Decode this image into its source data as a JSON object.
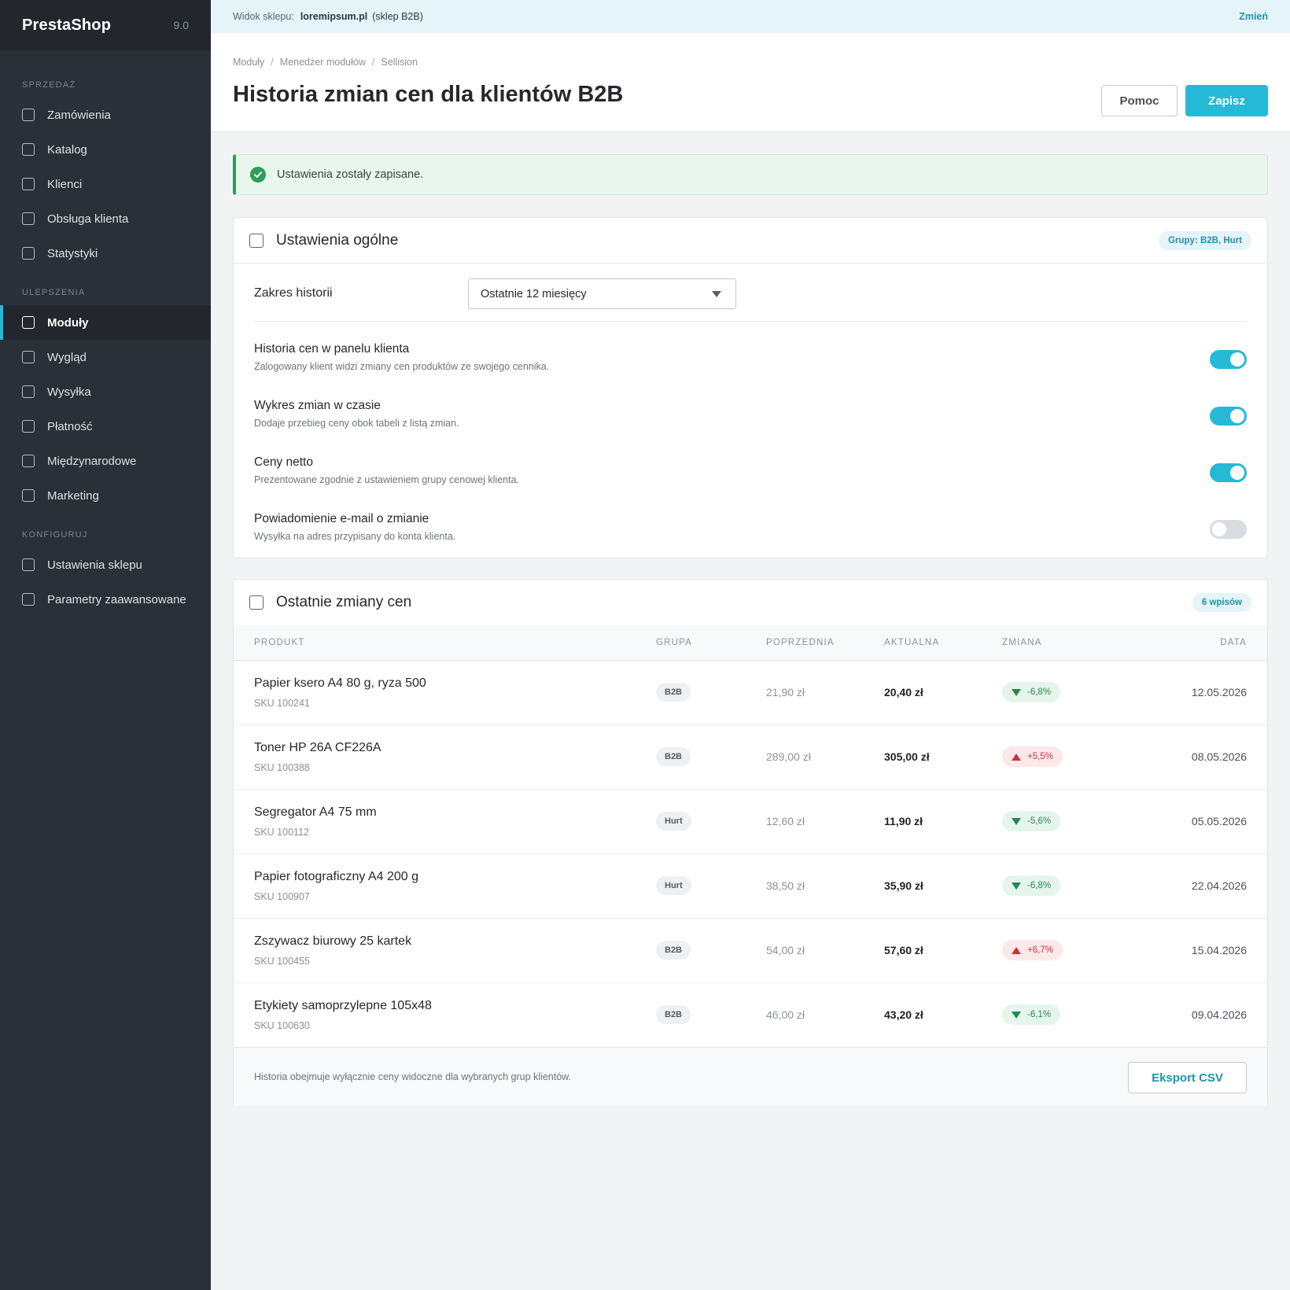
{
  "sidebar": {
    "brand": "PrestaShop",
    "version": "9.0",
    "sections": [
      {
        "title": "SPRZEDAŻ",
        "items": [
          {
            "label": "Zamówienia"
          },
          {
            "label": "Katalog"
          },
          {
            "label": "Klienci"
          },
          {
            "label": "Obsługa klienta"
          },
          {
            "label": "Statystyki"
          }
        ]
      },
      {
        "title": "ULEPSZENIA",
        "items": [
          {
            "label": "Moduły",
            "active": true
          },
          {
            "label": "Wygląd"
          },
          {
            "label": "Wysyłka"
          },
          {
            "label": "Płatność"
          },
          {
            "label": "Międzynarodowe"
          },
          {
            "label": "Marketing"
          }
        ]
      },
      {
        "title": "KONFIGURUJ",
        "items": [
          {
            "label": "Ustawienia sklepu"
          },
          {
            "label": "Parametry zaawansowane"
          }
        ]
      }
    ]
  },
  "topbar": {
    "label": "Widok sklepu:",
    "shop": "loremipsum.pl",
    "shop_type": "(sklep B2B)",
    "change": "Zmień"
  },
  "header": {
    "breadcrumb": [
      "Moduły",
      "Menedżer modułów",
      "Sellision"
    ],
    "title": "Historia zmian cen dla klientów B2B",
    "help_label": "Pomoc",
    "save_label": "Zapisz"
  },
  "alert": {
    "message": "Ustawienia zostały zapisane.",
    "color": "#2e9e5b"
  },
  "general": {
    "title": "Ustawienia ogólne",
    "groups_pill": "Grupy: B2B, Hurt",
    "range_label": "Zakres historii",
    "range_value": "Ostatnie 12 miesięcy",
    "toggles": [
      {
        "title": "Historia cen w panelu klienta",
        "desc": "Zalogowany klient widzi zmiany cen produktów ze swojego cennika.",
        "on": true
      },
      {
        "title": "Wykres zmian w czasie",
        "desc": "Dodaje przebieg ceny obok tabeli z listą zmian.",
        "on": true
      },
      {
        "title": "Ceny netto",
        "desc": "Prezentowane zgodnie z ustawieniem grupy cenowej klienta.",
        "on": true
      },
      {
        "title": "Powiadomienie e-mail o zmianie",
        "desc": "Wysyłka na adres przypisany do konta klienta.",
        "on": false
      }
    ]
  },
  "changes": {
    "title": "Ostatnie zmiany cen",
    "count_pill": "6 wpisów",
    "columns": {
      "product": "PRODUKT",
      "group": "GRUPA",
      "previous": "POPRZEDNIA",
      "current": "AKTUALNA",
      "change": "ZMIANA",
      "date": "DATA"
    },
    "rows": [
      {
        "name": "Papier ksero A4 80 g, ryza 500",
        "sku": "SKU 100241",
        "group": "B2B",
        "previous": "21,90 zł",
        "current": "20,40 zł",
        "change": "-6,8%",
        "direction": "down",
        "date": "12.05.2026"
      },
      {
        "name": "Toner HP 26A CF226A",
        "sku": "SKU 100388",
        "group": "B2B",
        "previous": "289,00 zł",
        "current": "305,00 zł",
        "change": "+5,5%",
        "direction": "up",
        "date": "08.05.2026"
      },
      {
        "name": "Segregator A4 75 mm",
        "sku": "SKU 100112",
        "group": "Hurt",
        "previous": "12,60 zł",
        "current": "11,90 zł",
        "change": "-5,6%",
        "direction": "down",
        "date": "05.05.2026"
      },
      {
        "name": "Papier fotograficzny A4 200 g",
        "sku": "SKU 100907",
        "group": "Hurt",
        "previous": "38,50 zł",
        "current": "35,90 zł",
        "change": "-6,8%",
        "direction": "down",
        "date": "22.04.2026"
      },
      {
        "name": "Zszywacz biurowy 25 kartek",
        "sku": "SKU 100455",
        "group": "B2B",
        "previous": "54,00 zł",
        "current": "57,60 zł",
        "change": "+6,7%",
        "direction": "up",
        "date": "15.04.2026"
      },
      {
        "name": "Etykiety samoprzylepne 105x48",
        "sku": "SKU 100630",
        "group": "B2B",
        "previous": "46,00 zł",
        "current": "43,20 zł",
        "change": "-6,1%",
        "direction": "down",
        "date": "09.04.2026"
      }
    ],
    "footer_note": "Historia obejmuje wyłącznie ceny widoczne dla wybranych grup klientów.",
    "export_label": "Eksport CSV"
  },
  "colors": {
    "accent": "#25b9d7",
    "sidebar": "#2b2f38",
    "success": "#2e9e5b",
    "danger": "#c9323a"
  }
}
